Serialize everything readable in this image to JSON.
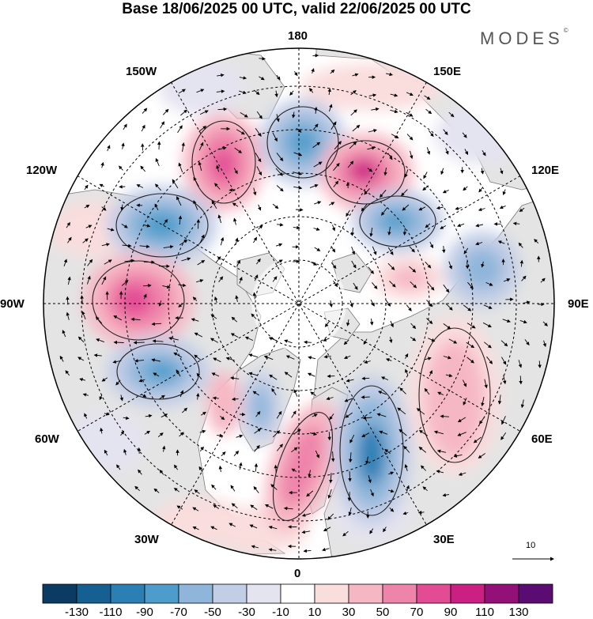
{
  "title": "Base 18/06/2025 00 UTC, valid 22/06/2025 00 UTC",
  "brand": "MODES",
  "brand_mark": "©",
  "longitude_labels": {
    "top": "180",
    "bottom": "0",
    "left": "90W",
    "right": "90E",
    "upper_left": "150W",
    "upper_right": "150E",
    "mid_upper_left": "120W",
    "mid_upper_right": "120E",
    "lower_left": "60W",
    "lower_right": "60E",
    "bottom_left": "30W",
    "bottom_right": "30E"
  },
  "reference_vector_label": "10",
  "colorbar": {
    "tick_labels": [
      "-130",
      "-110",
      "-90",
      "-70",
      "-50",
      "-30",
      "-10",
      "10",
      "30",
      "50",
      "70",
      "90",
      "110",
      "130"
    ],
    "colors": [
      "#0b3a63",
      "#165f92",
      "#2b7fb5",
      "#4e9ccb",
      "#8fb6da",
      "#c2cde6",
      "#e4e3f0",
      "#ffffff",
      "#fadddd",
      "#f6b7c4",
      "#ef84aa",
      "#e34b95",
      "#cc1f84",
      "#931078",
      "#5a0c72"
    ]
  },
  "colors": {
    "land": "#e4e4e4",
    "ocean": "#ffffff",
    "coast": "#6b6b6b"
  }
}
